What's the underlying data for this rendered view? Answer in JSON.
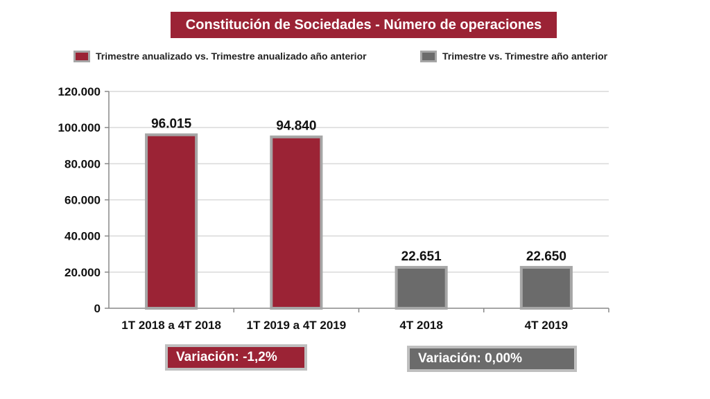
{
  "colors": {
    "accent": "#9b2335",
    "gray": "#6b6b6b",
    "bar_border": "#a6a6a6",
    "grid": "#d9d9d9"
  },
  "legend": [
    {
      "label": "Trimestre anualizado vs. Trimestre anualizado año anterior",
      "color": "#9b2335"
    },
    {
      "label": "Trimestre vs. Trimestre año anterior",
      "color": "#6b6b6b"
    }
  ],
  "variations": [
    {
      "label": "Variación:  -1,2%",
      "color": "#9b2335"
    },
    {
      "label": "Variación: 0,00%",
      "color": "#6b6b6b"
    }
  ],
  "chart_data": {
    "type": "bar",
    "title": "Constitución de Sociedades - Número de operaciones",
    "categories": [
      "1T 2018 a 4T 2018",
      "1T 2019 a 4T 2019",
      "4T 2018",
      "4T 2019"
    ],
    "values": [
      96015,
      94840,
      22651,
      22650
    ],
    "value_labels": [
      "96.015",
      "94.840",
      "22.651",
      "22.650"
    ],
    "bar_colors": [
      "#9b2335",
      "#9b2335",
      "#6b6b6b",
      "#6b6b6b"
    ],
    "ylim": [
      0,
      120000
    ],
    "yticks": [
      0,
      20000,
      40000,
      60000,
      80000,
      100000,
      120000
    ],
    "ytick_labels": [
      "0",
      "20.000",
      "40.000",
      "60.000",
      "80.000",
      "100.000",
      "120.000"
    ],
    "xlabel": "",
    "ylabel": "",
    "grid": true,
    "legend_position": "top"
  }
}
